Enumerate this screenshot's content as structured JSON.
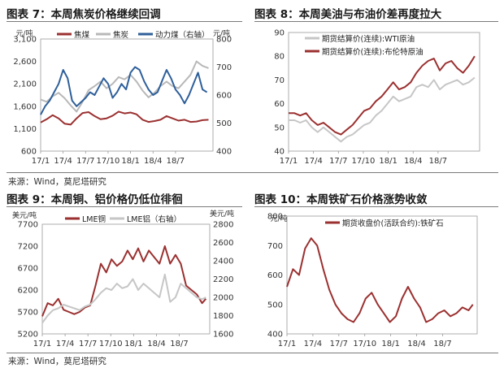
{
  "panels": {
    "p7": {
      "title": "图表 7：本周焦炭价格继续回调"
    },
    "p8": {
      "title": "图表 8：本周美油与布油价差再度拉大"
    },
    "p9": {
      "title": "图表 9：本周铜、铝价格仍低位徘徊"
    },
    "p10": {
      "title": "图表 10：本周铁矿石价格涨势收敛"
    }
  },
  "sources": {
    "top": "来源：Wind，莫尼塔研究",
    "bottom": "来源：Wind，莫尼塔研究"
  },
  "chart_data": [
    {
      "id": "coke",
      "type": "line",
      "unit_left": "元/吨",
      "unit_right": "元/吨",
      "y_left": {
        "lim": [
          600,
          3100
        ],
        "ticks": [
          "3,100",
          "2,600",
          "2,100",
          "1,600",
          "1,100",
          "600"
        ],
        "tick_values": [
          3100,
          2600,
          2100,
          1600,
          1100,
          600
        ]
      },
      "y_right": {
        "lim": [
          400,
          800
        ],
        "ticks": [
          "800",
          "700",
          "600",
          "500",
          "400"
        ],
        "tick_values": [
          800,
          700,
          600,
          500,
          400
        ]
      },
      "x_ticks": [
        "17/1",
        "17/4",
        "17/7",
        "17/10",
        "18/1",
        "18/4",
        "18/7"
      ],
      "x_domain": [
        0,
        23
      ],
      "x_tick_pos": [
        0,
        3,
        6,
        9,
        12,
        15,
        18
      ],
      "series": [
        {
          "name": "焦煤",
          "axis": "left",
          "color": "#9b3030",
          "x": [
            0,
            0.8,
            1.6,
            2.4,
            3.2,
            4.0,
            4.8,
            5.6,
            6.4,
            7.2,
            8.0,
            8.8,
            9.6,
            10.4,
            11.2,
            12.0,
            12.8,
            13.6,
            14.4,
            15.2,
            16.0,
            16.8,
            17.6,
            18.4,
            19.2,
            20.0,
            20.8,
            21.6,
            22.4
          ],
          "values": [
            1240,
            1310,
            1400,
            1330,
            1210,
            1190,
            1330,
            1450,
            1470,
            1380,
            1310,
            1330,
            1390,
            1480,
            1440,
            1460,
            1420,
            1300,
            1250,
            1270,
            1300,
            1380,
            1330,
            1280,
            1300,
            1250,
            1260,
            1290,
            1300
          ]
        },
        {
          "name": "焦炭",
          "axis": "left",
          "color": "#b8b8b8",
          "x": [
            0,
            0.8,
            1.6,
            2.4,
            3.2,
            4.0,
            4.8,
            5.6,
            6.4,
            7.2,
            8.0,
            8.8,
            9.6,
            10.4,
            11.2,
            12.0,
            12.8,
            13.6,
            14.4,
            15.2,
            16.0,
            16.8,
            17.6,
            18.4,
            19.2,
            20.0,
            20.8,
            21.6,
            22.4
          ],
          "values": [
            1750,
            1700,
            1820,
            1900,
            1780,
            1620,
            1480,
            1700,
            1960,
            2050,
            2150,
            2000,
            2100,
            2250,
            2200,
            2300,
            2150,
            1950,
            1800,
            1900,
            2050,
            2150,
            2050,
            2000,
            2150,
            2300,
            2600,
            2500,
            2450
          ]
        },
        {
          "name": "动力煤（右轴）",
          "axis": "right",
          "color": "#2e5f9a",
          "x": [
            0,
            0.6,
            1.2,
            1.8,
            2.4,
            3.0,
            3.6,
            4.2,
            4.8,
            5.4,
            6.0,
            6.6,
            7.2,
            7.8,
            8.4,
            9.0,
            9.6,
            10.2,
            10.8,
            11.4,
            12.0,
            12.6,
            13.2,
            13.8,
            14.4,
            15.0,
            15.6,
            16.2,
            16.8,
            17.4,
            18.0,
            18.6,
            19.2,
            19.8,
            20.4,
            21.0,
            21.6,
            22.2
          ],
          "values": [
            530,
            560,
            580,
            610,
            640,
            690,
            660,
            580,
            560,
            575,
            590,
            610,
            600,
            630,
            660,
            640,
            590,
            610,
            640,
            620,
            680,
            700,
            690,
            650,
            620,
            600,
            610,
            650,
            690,
            660,
            620,
            600,
            570,
            600,
            640,
            680,
            620,
            610
          ]
        }
      ]
    },
    {
      "id": "oil",
      "type": "line",
      "y_left": {
        "lim": [
          40,
          90
        ],
        "ticks": [
          "90",
          "80",
          "70",
          "60",
          "50",
          "40"
        ],
        "tick_values": [
          90,
          80,
          70,
          60,
          50,
          40
        ]
      },
      "x_ticks": [
        "17/1",
        "17/4",
        "17/7",
        "17/10",
        "18/1",
        "18/4",
        "18/7"
      ],
      "x_domain": [
        0,
        23
      ],
      "x_tick_pos": [
        0,
        3,
        6,
        9,
        12,
        15,
        18
      ],
      "series": [
        {
          "name": "期货结算价(连续):WTI原油",
          "color": "#c6c6c6",
          "x": [
            0,
            0.7,
            1.4,
            2.1,
            2.8,
            3.5,
            4.2,
            4.9,
            5.6,
            6.3,
            7.0,
            7.7,
            8.4,
            9.1,
            9.8,
            10.5,
            11.2,
            11.9,
            12.6,
            13.3,
            14.0,
            14.7,
            15.4,
            16.1,
            16.8,
            17.5,
            18.2,
            18.9,
            19.6,
            20.3,
            21.0,
            21.7,
            22.4
          ],
          "values": [
            53,
            53,
            52,
            53,
            50,
            48,
            50,
            48,
            46,
            44,
            46,
            47,
            49,
            51,
            52,
            55,
            57,
            60,
            63,
            61,
            62,
            63,
            67,
            68,
            67,
            70,
            66,
            68,
            69,
            70,
            68,
            69,
            71
          ]
        },
        {
          "name": "期货结算价(连续):布伦特原油",
          "color": "#9b3030",
          "x": [
            0,
            0.7,
            1.4,
            2.1,
            2.8,
            3.5,
            4.2,
            4.9,
            5.6,
            6.3,
            7.0,
            7.7,
            8.4,
            9.1,
            9.8,
            10.5,
            11.2,
            11.9,
            12.6,
            13.3,
            14.0,
            14.7,
            15.4,
            16.1,
            16.8,
            17.5,
            18.2,
            18.9,
            19.6,
            20.3,
            21.0,
            21.7,
            22.4
          ],
          "values": [
            56,
            56,
            55,
            56,
            53,
            51,
            52,
            50,
            48,
            47,
            49,
            51,
            54,
            57,
            58,
            61,
            63,
            66,
            69,
            66,
            67,
            69,
            73,
            76,
            78,
            79,
            74,
            77,
            78,
            75,
            73,
            76,
            80
          ]
        }
      ]
    },
    {
      "id": "metals",
      "type": "line",
      "unit_left": "美元/吨",
      "unit_right": "美元/吨",
      "y_left": {
        "lim": [
          5200,
          7700
        ],
        "ticks": [
          "7700",
          "7200",
          "6700",
          "6200",
          "5700",
          "5200"
        ],
        "tick_values": [
          7700,
          7200,
          6700,
          6200,
          5700,
          5200
        ]
      },
      "y_right": {
        "lim": [
          1600,
          2800
        ],
        "ticks": [
          "2800",
          "2600",
          "2400",
          "2200",
          "2000",
          "1800",
          "1600"
        ],
        "tick_values": [
          2800,
          2600,
          2400,
          2200,
          2000,
          1800,
          1600
        ]
      },
      "x_ticks": [
        "17/1",
        "17/4",
        "17/7",
        "17/10",
        "18/1",
        "18/4",
        "18/7"
      ],
      "x_domain": [
        0,
        22
      ],
      "x_tick_pos": [
        0,
        3,
        6,
        9,
        12,
        15,
        18
      ],
      "series": [
        {
          "name": "LME铜",
          "axis": "left",
          "color": "#9b3030",
          "x": [
            0,
            0.7,
            1.4,
            2.1,
            2.8,
            3.5,
            4.2,
            4.9,
            5.6,
            6.3,
            7.0,
            7.7,
            8.4,
            9.1,
            9.8,
            10.5,
            11.2,
            11.9,
            12.6,
            13.3,
            14.0,
            14.7,
            15.4,
            16.1,
            16.8,
            17.5,
            18.2,
            18.9,
            19.6,
            20.3,
            21.0,
            21.5
          ],
          "values": [
            5600,
            5900,
            5850,
            6000,
            5750,
            5700,
            5650,
            5700,
            5800,
            5850,
            6300,
            6800,
            6600,
            6900,
            6750,
            6850,
            7100,
            6900,
            7150,
            6850,
            7100,
            6950,
            6800,
            7200,
            6800,
            7000,
            6800,
            6300,
            6200,
            6100,
            5900,
            6000
          ]
        },
        {
          "name": "LME铝（右轴）",
          "axis": "right",
          "color": "#c6c6c6",
          "x": [
            0,
            0.7,
            1.4,
            2.1,
            2.8,
            3.5,
            4.2,
            4.9,
            5.6,
            6.3,
            7.0,
            7.7,
            8.4,
            9.1,
            9.8,
            10.5,
            11.2,
            11.9,
            12.6,
            13.3,
            14.0,
            14.7,
            15.4,
            16.1,
            16.8,
            17.5,
            18.2,
            18.9,
            19.6,
            20.3,
            21.0,
            21.5
          ],
          "values": [
            1720,
            1800,
            1860,
            1880,
            1920,
            1900,
            1880,
            1860,
            1900,
            1920,
            1980,
            2050,
            2100,
            2080,
            2150,
            2100,
            2120,
            2200,
            2080,
            2150,
            2100,
            2050,
            2000,
            2250,
            1950,
            2000,
            2150,
            2100,
            2050,
            2000,
            1980,
            2000
          ]
        }
      ]
    },
    {
      "id": "iron",
      "type": "line",
      "unit_left": "元/吨",
      "y_left": {
        "lim": [
          400,
          800
        ],
        "ticks": [
          "800",
          "700",
          "600",
          "500",
          "400"
        ],
        "tick_values": [
          800,
          700,
          600,
          500,
          400
        ]
      },
      "x_ticks": [
        "17/1",
        "17/4",
        "17/7",
        "17/10",
        "18/1",
        "18/4",
        "18/7"
      ],
      "x_domain": [
        0,
        22
      ],
      "x_tick_pos": [
        0,
        3,
        6,
        9,
        12,
        15,
        18
      ],
      "series": [
        {
          "name": "期货收盘价(活跃合约):铁矿石",
          "color": "#9b3030",
          "x": [
            0,
            0.7,
            1.4,
            2.1,
            2.8,
            3.5,
            4.2,
            4.9,
            5.6,
            6.3,
            7.0,
            7.7,
            8.4,
            9.1,
            9.8,
            10.5,
            11.2,
            11.9,
            12.6,
            13.3,
            14.0,
            14.7,
            15.4,
            16.1,
            16.8,
            17.5,
            18.2,
            18.9,
            19.6,
            20.3,
            21.0,
            21.5
          ],
          "values": [
            560,
            620,
            600,
            690,
            725,
            700,
            620,
            550,
            500,
            470,
            450,
            440,
            470,
            520,
            540,
            500,
            470,
            440,
            460,
            520,
            560,
            520,
            490,
            440,
            450,
            470,
            480,
            460,
            470,
            490,
            480,
            500
          ]
        }
      ]
    }
  ]
}
